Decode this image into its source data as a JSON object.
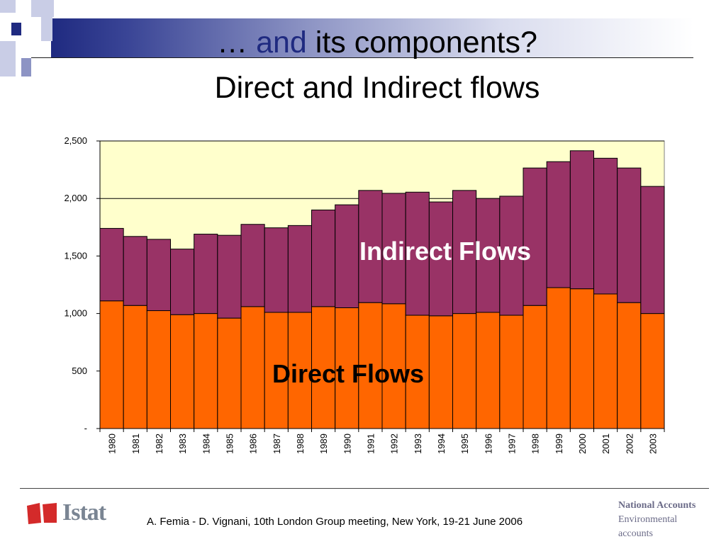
{
  "slide": {
    "title_prefix": "… ",
    "title_and": "and",
    "title_rest": " its components?",
    "subtitle": "Direct and Indirect flows",
    "footer": "A. Femia - D. Vignani, 10th London Group meeting, New York, 19-21 June 2006",
    "logo_text": "Istat",
    "brand_line1": "National Accounts",
    "brand_line2": "Environmental",
    "brand_line3": "accounts"
  },
  "colors": {
    "direct": "#ff6600",
    "indirect": "#993366",
    "plot_bg": "#ffffcc",
    "title_blue": "#1f2a80"
  },
  "chart_data": {
    "type": "bar",
    "stacked": true,
    "categories": [
      "1980",
      "1981",
      "1982",
      "1983",
      "1984",
      "1985",
      "1986",
      "1987",
      "1988",
      "1989",
      "1990",
      "1991",
      "1992",
      "1993",
      "1994",
      "1995",
      "1996",
      "1997",
      "1998",
      "1999",
      "2000",
      "2001",
      "2002",
      "2003"
    ],
    "series": [
      {
        "name": "Direct Flows",
        "values": [
          1110,
          1070,
          1025,
          990,
          1000,
          960,
          1060,
          1010,
          1010,
          1060,
          1050,
          1095,
          1085,
          985,
          980,
          1000,
          1010,
          985,
          1070,
          1225,
          1215,
          1170,
          1095,
          1000
        ]
      },
      {
        "name": "Indirect Flows",
        "values": [
          630,
          600,
          620,
          570,
          690,
          720,
          715,
          735,
          755,
          840,
          895,
          975,
          960,
          1070,
          990,
          1070,
          990,
          1035,
          1195,
          1095,
          1200,
          1180,
          1170,
          1105
        ]
      }
    ],
    "ylim": [
      0,
      2500
    ],
    "yticks": [
      0,
      500,
      1000,
      1500,
      2000,
      2500
    ],
    "ytick_labels": [
      "-",
      "500",
      "1,000",
      "1,500",
      "2,000",
      "2,500"
    ],
    "grid": true
  }
}
